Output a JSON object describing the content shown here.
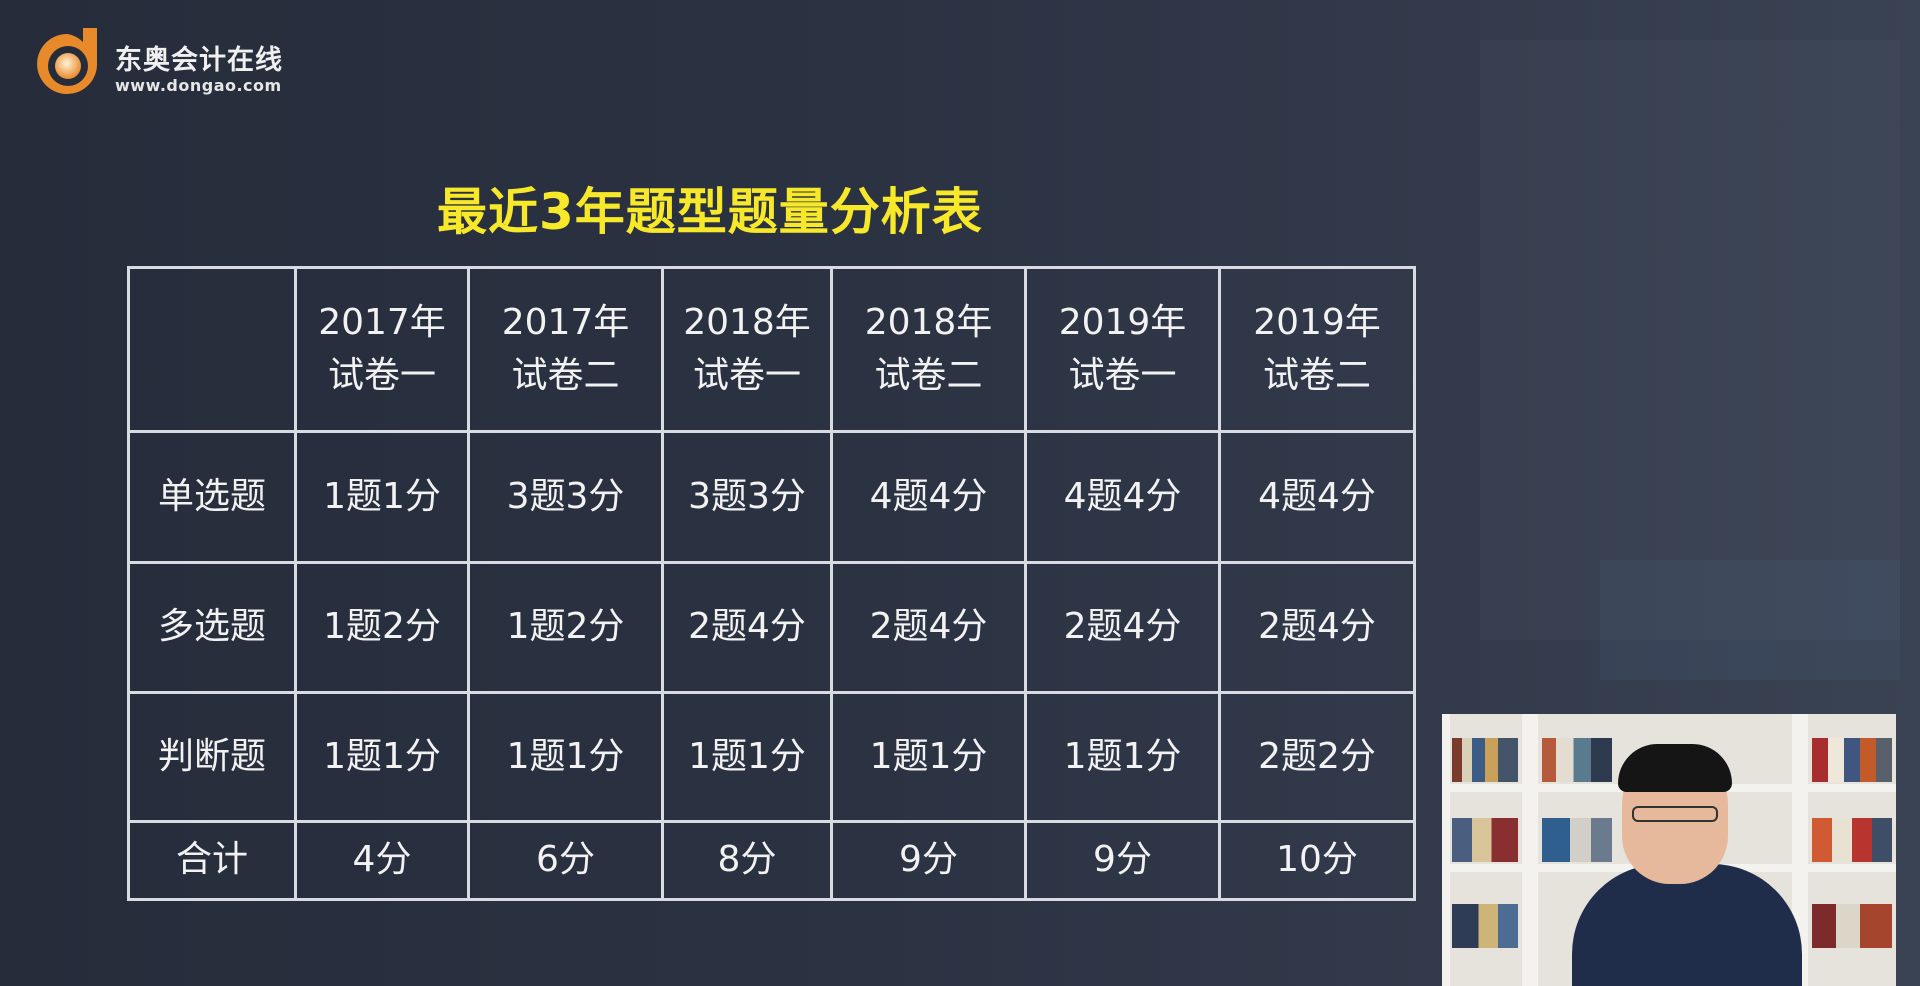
{
  "logo": {
    "name": "东奥会计在线",
    "url": "www.dongao.com",
    "brand_color": "#e8892a"
  },
  "title": "最近3年题型题量分析表",
  "title_color": "#f7e82a",
  "table": {
    "headers": [
      {
        "year": "",
        "paper": ""
      },
      {
        "year": "2017年",
        "paper": "试卷一"
      },
      {
        "year": "2017年",
        "paper": "试卷二"
      },
      {
        "year": "2018年",
        "paper": "试卷一"
      },
      {
        "year": "2018年",
        "paper": "试卷二"
      },
      {
        "year": "2019年",
        "paper": "试卷一"
      },
      {
        "year": "2019年",
        "paper": "试卷二"
      }
    ],
    "rows": [
      {
        "label": "单选题",
        "cells": [
          "1题1分",
          "3题3分",
          "3题3分",
          "4题4分",
          "4题4分",
          "4题4分"
        ]
      },
      {
        "label": "多选题",
        "cells": [
          "1题2分",
          "1题2分",
          "2题4分",
          "2题4分",
          "2题4分",
          "2题4分"
        ]
      },
      {
        "label": "判断题",
        "cells": [
          "1题1分",
          "1题1分",
          "1题1分",
          "1题1分",
          "1题1分",
          "2题2分"
        ]
      },
      {
        "label": "合计",
        "cells": [
          "4分",
          "6分",
          "8分",
          "9分",
          "9分",
          "10分"
        ]
      }
    ]
  },
  "webcam": {
    "icon": "presenter-video"
  }
}
